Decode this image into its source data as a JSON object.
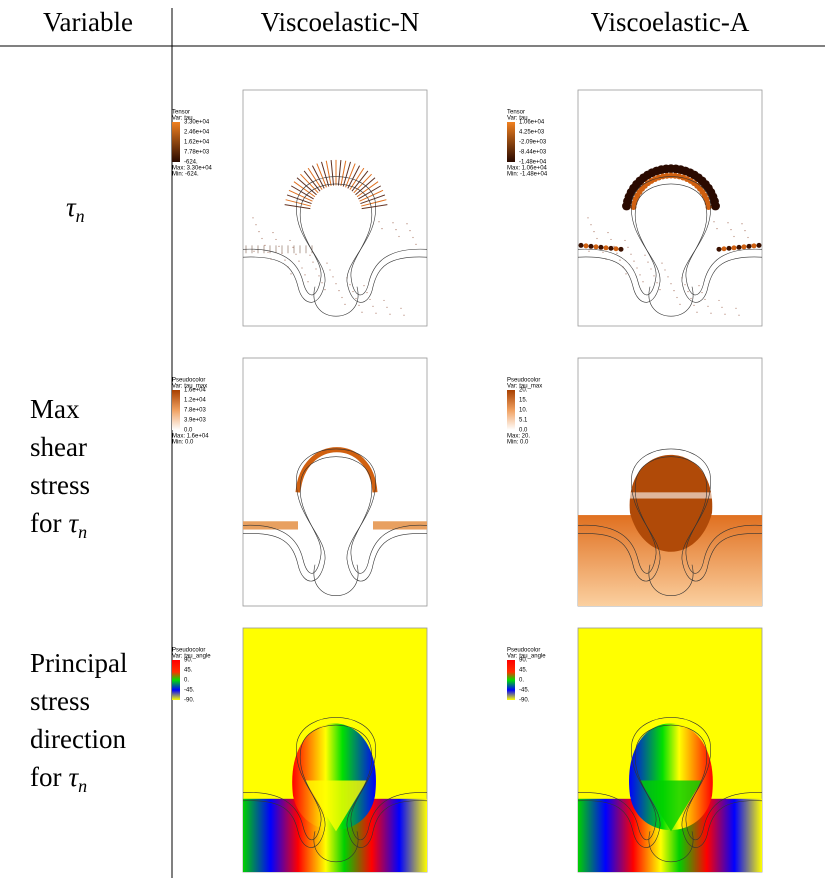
{
  "table": {
    "headers": [
      "Variable",
      "Viscoelastic-N",
      "Viscoelastic-A"
    ],
    "rows": [
      {
        "label": {
          "lines": [],
          "prefix": "",
          "symbol": "τ",
          "subscript": "n"
        },
        "panels": [
          {
            "kind": "Tensor",
            "var": "Var: tau",
            "ticks": [
              "3.30e+04",
              "2.46e+04",
              "1.62e+04",
              "7.78e+03",
              "-624."
            ],
            "max": "Max: 3.30e+04",
            "min": "Min: -624."
          },
          {
            "kind": "Tensor",
            "var": "Var: tau",
            "ticks": [
              "1.06e+04",
              "4.25e+03",
              "-2.09e+03",
              "-8.44e+03",
              "-1.48e+04"
            ],
            "max": "Max: 1.06e+04",
            "min": "Min: -1.48e+04"
          }
        ]
      },
      {
        "label": {
          "lines": [
            "Max",
            "shear",
            "stress"
          ],
          "prefix": "for",
          "symbol": "τ",
          "subscript": "n"
        },
        "panels": [
          {
            "kind": "Pseudocolor",
            "var": "Var: tau_max",
            "ticks": [
              "1.6e+04",
              "1.2e+04",
              "7.8e+03",
              "3.9e+03",
              "0.0"
            ],
            "max": "Max: 1.6e+04",
            "min": "Min: 0.0"
          },
          {
            "kind": "Pseudocolor",
            "var": "Var: tau_max",
            "ticks": [
              "20.",
              "15.",
              "10.",
              "5.1",
              "0.0"
            ],
            "max": "Max: 20.",
            "min": "Min: 0.0"
          }
        ]
      },
      {
        "label": {
          "lines": [
            "Principal",
            "stress",
            "direction"
          ],
          "prefix": "for",
          "symbol": "τ",
          "subscript": "n"
        },
        "panels": [
          {
            "kind": "Pseudocolor",
            "var": "Var: tau_angle",
            "ticks": [
              "90.",
              "45.",
              "0.",
              "-45.",
              "-90."
            ]
          },
          {
            "kind": "Pseudocolor",
            "var": "Var: tau_angle",
            "ticks": [
              "90.",
              "45.",
              "0.",
              "-45.",
              "-90."
            ]
          }
        ]
      }
    ]
  }
}
